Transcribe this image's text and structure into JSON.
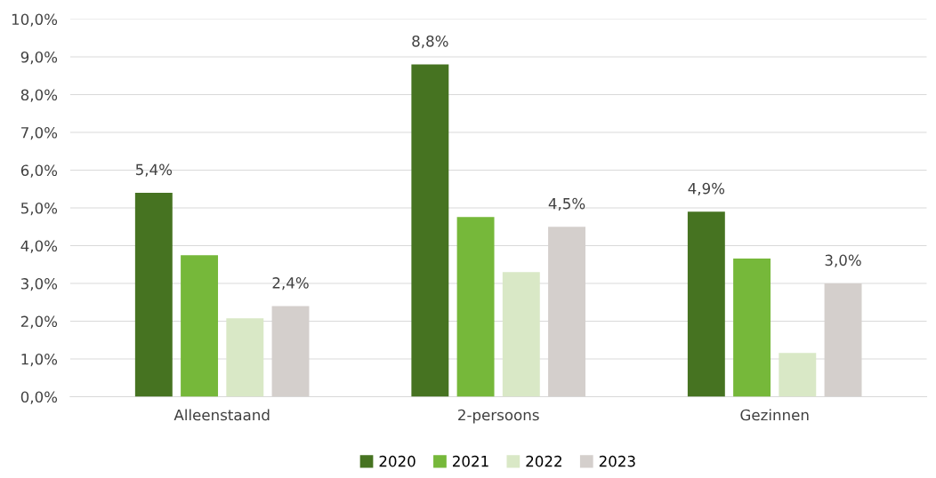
{
  "chart_data": {
    "type": "bar",
    "categories": [
      "Alleenstaand",
      "2-persoons",
      "Gezinnen"
    ],
    "series": [
      {
        "name": "2020",
        "color": "#467321",
        "values": [
          5.4,
          8.8,
          4.9
        ],
        "value_labels": [
          "5,4%",
          "8,8%",
          "4,9%"
        ]
      },
      {
        "name": "2021",
        "color": "#76b83a",
        "values": [
          3.75,
          4.76,
          3.66
        ],
        "value_labels": [
          null,
          null,
          null
        ]
      },
      {
        "name": "2022",
        "color": "#d9e8c6",
        "values": [
          2.08,
          3.3,
          1.16
        ],
        "value_labels": [
          null,
          null,
          null
        ]
      },
      {
        "name": "2023",
        "color": "#d4cfcc",
        "values": [
          2.4,
          4.5,
          3.0
        ],
        "value_labels": [
          "2,4%",
          "4,5%",
          "3,0%"
        ]
      }
    ],
    "ylim": [
      0,
      10
    ],
    "yticks": [
      {
        "value": 0,
        "label": "0,0%"
      },
      {
        "value": 1,
        "label": "1,0%"
      },
      {
        "value": 2,
        "label": "2,0%"
      },
      {
        "value": 3,
        "label": "3,0%"
      },
      {
        "value": 4,
        "label": "4,0%"
      },
      {
        "value": 5,
        "label": "5,0%"
      },
      {
        "value": 6,
        "label": "6,0%"
      },
      {
        "value": 7,
        "label": "7,0%"
      },
      {
        "value": 8,
        "label": "8,0%"
      },
      {
        "value": 9,
        "label": "9,0%"
      },
      {
        "value": 10,
        "label": "10,0%"
      }
    ],
    "grid": "y",
    "legend": "bottom"
  }
}
